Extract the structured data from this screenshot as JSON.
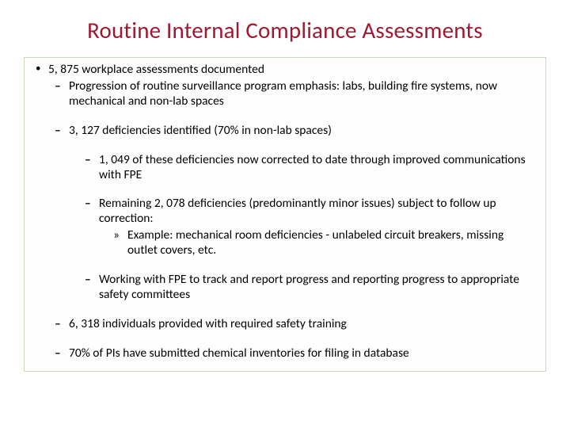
{
  "title": {
    "text": "Routine Internal Compliance Assessments",
    "color": "#a01830",
    "fontsize": 29
  },
  "content_box": {
    "background": "#fdfefd",
    "border_color": "#c9d9bb"
  },
  "bullets": {
    "b1": "5, 875 workplace assessments documented",
    "b1a": "Progression of routine surveillance program emphasis: labs, building fire systems, now mechanical and non-lab spaces",
    "b1b": "3, 127 deficiencies identified (70% in non-lab spaces)",
    "b1b_i": "1, 049 of these deficiencies now corrected to date through improved communications with FPE",
    "b1b_ii": "Remaining  2, 078 deficiencies (predominantly minor issues) subject to follow up correction:",
    "b1b_ii_ex": "Example: mechanical room deficiencies - unlabeled circuit breakers, missing outlet covers, etc.",
    "b1b_iii": "Working with FPE to track and report progress and reporting progress to appropriate safety committees",
    "b1c": "6, 318 individuals provided with required safety training",
    "b1d": " 70% of PIs have submitted chemical inventories for filing in database"
  }
}
